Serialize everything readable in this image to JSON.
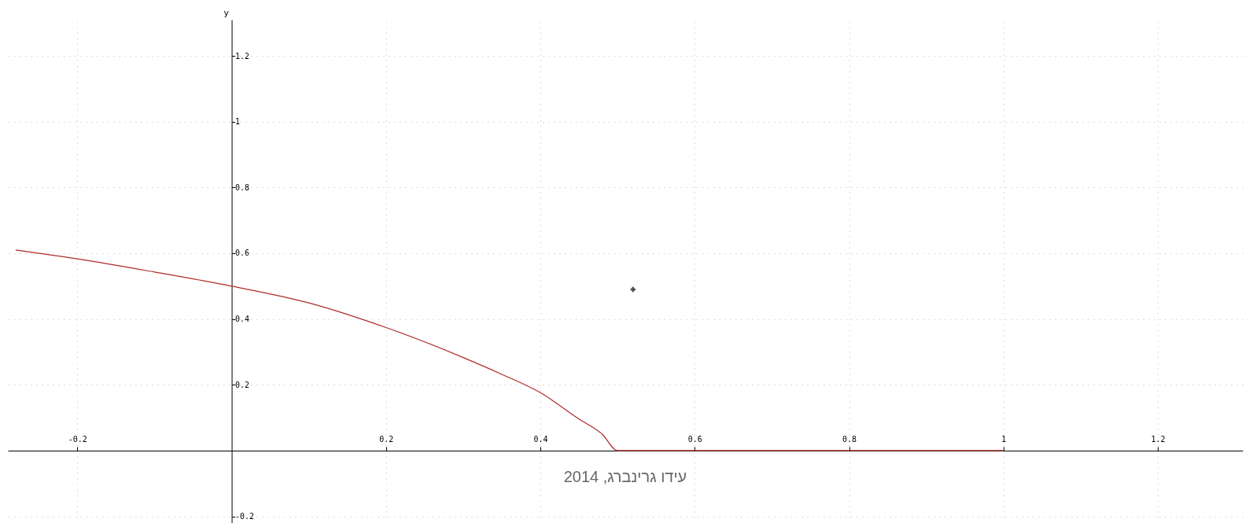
{
  "chart_data": {
    "type": "line",
    "ylabel": "y",
    "xlim": [
      -0.29,
      1.31
    ],
    "ylim": [
      -0.22,
      1.31
    ],
    "xticks": [
      -0.2,
      0.2,
      0.4,
      0.6,
      0.8,
      1,
      1.2
    ],
    "yticks": [
      -0.2,
      0.2,
      0.4,
      0.6,
      0.8,
      1,
      1.2
    ],
    "grid": true,
    "series": [
      {
        "color": "#b02a2a",
        "x": [
          -0.28,
          -0.2,
          -0.1,
          0,
          0.1,
          0.2,
          0.3,
          0.35,
          0.4,
          0.45,
          0.48,
          0.5,
          0.6,
          0.8,
          1
        ],
        "values": [
          0.61,
          0.583,
          0.543,
          0.5,
          0.449,
          0.374,
          0.283,
          0.232,
          0.176,
          0.096,
          0.05,
          0,
          0,
          0,
          0
        ]
      },
      {
        "type": "scatter",
        "color": "#000000",
        "marker": "cross",
        "x": [
          0.52
        ],
        "values": [
          0.49
        ]
      }
    ],
    "annotations": [
      "עידו גרינברג, 2014"
    ]
  }
}
